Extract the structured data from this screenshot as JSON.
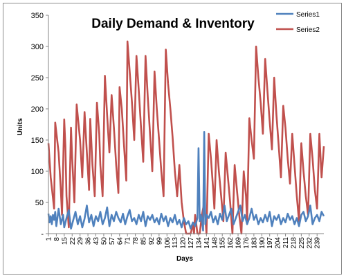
{
  "chart_data": {
    "type": "line",
    "title": "Daily Demand & Inventory",
    "xlabel": "Days",
    "ylabel": "Units",
    "ylim": [
      0,
      350
    ],
    "y_ticks": [
      0,
      50,
      100,
      150,
      200,
      250,
      300,
      350
    ],
    "y_tick_labels": [
      "-",
      "50",
      "100",
      "150",
      "200",
      "250",
      "300",
      "350"
    ],
    "x_range": [
      1,
      245
    ],
    "x_ticks": [
      1,
      8,
      15,
      22,
      29,
      36,
      43,
      50,
      57,
      64,
      71,
      78,
      85,
      92,
      99,
      106,
      113,
      120,
      127,
      134,
      141,
      148,
      155,
      162,
      169,
      176,
      183,
      190,
      197,
      204,
      211,
      218,
      225,
      232,
      239
    ],
    "grid": false,
    "legend_position": "top-right",
    "series": [
      {
        "name": "Series1",
        "color": "#4f81bd",
        "x": [
          1,
          2,
          3,
          4,
          5,
          6,
          7,
          8,
          9,
          10,
          12,
          14,
          15,
          17,
          19,
          21,
          23,
          25,
          27,
          29,
          31,
          33,
          35,
          37,
          39,
          41,
          43,
          45,
          47,
          49,
          51,
          53,
          55,
          57,
          59,
          61,
          63,
          65,
          67,
          69,
          71,
          73,
          75,
          77,
          79,
          81,
          83,
          85,
          87,
          89,
          91,
          93,
          95,
          97,
          99,
          101,
          103,
          105,
          107,
          109,
          111,
          113,
          115,
          117,
          119,
          121,
          123,
          125,
          127,
          129,
          131,
          133,
          134,
          135,
          136,
          137,
          138,
          139,
          140,
          141,
          143,
          145,
          147,
          149,
          151,
          153,
          155,
          157,
          159,
          161,
          163,
          165,
          167,
          169,
          171,
          173,
          175,
          177,
          179,
          181,
          183,
          185,
          187,
          189,
          191,
          193,
          195,
          197,
          199,
          201,
          203,
          205,
          207,
          209,
          211,
          213,
          215,
          217,
          219,
          221,
          223,
          225,
          227,
          229,
          231,
          233,
          235,
          237,
          239,
          241,
          243,
          245
        ],
        "values": [
          32,
          18,
          28,
          15,
          30,
          22,
          35,
          12,
          25,
          40,
          15,
          30,
          10,
          25,
          38,
          8,
          22,
          35,
          15,
          28,
          10,
          24,
          45,
          18,
          30,
          12,
          28,
          20,
          35,
          15,
          25,
          42,
          12,
          30,
          20,
          35,
          25,
          18,
          32,
          15,
          28,
          38,
          20,
          25,
          15,
          30,
          20,
          35,
          12,
          28,
          22,
          30,
          18,
          25,
          15,
          32,
          20,
          28,
          12,
          25,
          18,
          30,
          15,
          22,
          10,
          25,
          15,
          20,
          8,
          18,
          12,
          25,
          137,
          20,
          30,
          22,
          5,
          163,
          15,
          30,
          25,
          35,
          18,
          28,
          15,
          32,
          22,
          45,
          20,
          30,
          40,
          15,
          25,
          35,
          45,
          20,
          30,
          15,
          25,
          40,
          22,
          30,
          15,
          25,
          18,
          30,
          20,
          35,
          12,
          28,
          22,
          30,
          15,
          25,
          18,
          32,
          22,
          28,
          15,
          25,
          12,
          30,
          35,
          20,
          28,
          45,
          15,
          25,
          30,
          20,
          35,
          28
        ]
      },
      {
        "name": "Series2",
        "color": "#c0504d",
        "x": [
          1,
          3,
          6,
          7,
          10,
          12,
          13,
          15,
          16,
          17,
          19,
          21,
          22,
          24,
          26,
          29,
          31,
          33,
          35,
          37,
          38,
          40,
          42,
          44,
          46,
          47,
          49,
          51,
          53,
          55,
          57,
          59,
          61,
          63,
          64,
          66,
          68,
          70,
          71,
          73,
          75,
          77,
          79,
          81,
          83,
          85,
          87,
          89,
          91,
          93,
          95,
          97,
          99,
          101,
          103,
          105,
          107,
          109,
          111,
          113,
          115,
          117,
          119,
          121,
          123,
          125,
          127,
          129,
          130,
          131,
          133,
          135,
          137,
          139,
          141,
          143,
          145,
          147,
          148,
          150,
          152,
          154,
          156,
          158,
          160,
          162,
          164,
          166,
          168,
          170,
          172,
          174,
          176,
          177,
          179,
          181,
          183,
          185,
          187,
          189,
          191,
          193,
          195,
          197,
          199,
          201,
          203,
          205,
          207,
          209,
          211,
          213,
          215,
          217,
          219,
          221,
          223,
          225,
          227,
          229,
          231,
          233,
          235,
          237,
          239,
          241,
          243,
          245
        ],
        "values": [
          145,
          90,
          40,
          178,
          130,
          70,
          30,
          183,
          140,
          60,
          10,
          170,
          120,
          50,
          207,
          150,
          90,
          195,
          130,
          70,
          184,
          110,
          60,
          210,
          160,
          110,
          60,
          253,
          190,
          130,
          222,
          170,
          110,
          65,
          235,
          200,
          140,
          85,
          308,
          260,
          210,
          150,
          285,
          230,
          170,
          115,
          285,
          220,
          160,
          100,
          260,
          200,
          150,
          100,
          60,
          295,
          240,
          200,
          155,
          100,
          60,
          110,
          50,
          20,
          0,
          0,
          0,
          15,
          0,
          30,
          0,
          0,
          30,
          50,
          0,
          160,
          120,
          70,
          40,
          150,
          100,
          60,
          20,
          130,
          90,
          50,
          0,
          110,
          70,
          30,
          0,
          100,
          60,
          20,
          185,
          150,
          120,
          300,
          250,
          210,
          160,
          280,
          230,
          180,
          135,
          250,
          190,
          140,
          90,
          205,
          170,
          120,
          80,
          160,
          110,
          60,
          20,
          145,
          100,
          60,
          30,
          160,
          120,
          70,
          40,
          160,
          90,
          140
        ]
      }
    ]
  }
}
